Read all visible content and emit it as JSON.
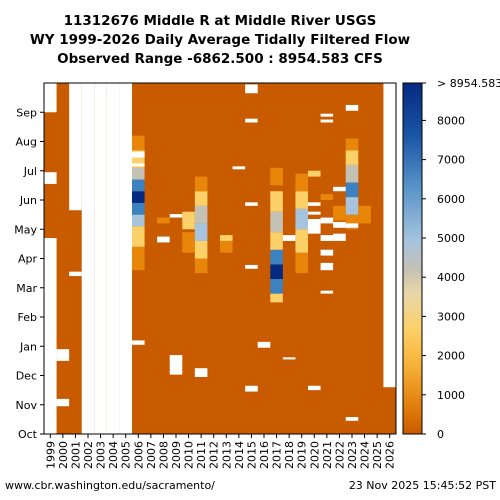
{
  "chart_data": {
    "type": "heatmap",
    "title": [
      "11312676 Middle R at Middle River USGS",
      "WY 1999-2026 Daily Average Tidally Filtered Flow",
      "Observed Range -6862.500 : 8954.583 CFS"
    ],
    "x_categories": [
      "1999",
      "2000",
      "2001",
      "2002",
      "2003",
      "2004",
      "2005",
      "2006",
      "2007",
      "2008",
      "2009",
      "2010",
      "2011",
      "2012",
      "2013",
      "2014",
      "2015",
      "2016",
      "2017",
      "2018",
      "2019",
      "2020",
      "2021",
      "2022",
      "2023",
      "2024",
      "2025",
      "2026"
    ],
    "y_categories": [
      "Oct",
      "Nov",
      "Dec",
      "Jan",
      "Feb",
      "Mar",
      "Apr",
      "May",
      "Jun",
      "Jul",
      "Aug",
      "Sep"
    ],
    "colorbar": {
      "ticks": [
        0,
        1000,
        2000,
        3000,
        4000,
        5000,
        6000,
        7000,
        8000
      ],
      "top_label": "> 8954.583",
      "range": [
        0,
        8954.583
      ],
      "colors": {
        "low": "#c85a00",
        "orange": "#e8860a",
        "yellow": "#fcd169",
        "grey": "#c4c1b5",
        "lightblue": "#a6c4de",
        "blue": "#3d82c0",
        "darkblue": "#052a82",
        "missing": "#ffffff"
      }
    },
    "base_value_note": "",
    "ranges": [
      {
        "year": "2006",
        "from": 5.6,
        "to": 6.4,
        "level": "orange"
      },
      {
        "year": "2006",
        "from": 6.4,
        "to": 7.1,
        "level": "yellow"
      },
      {
        "year": "2006",
        "from": 7.1,
        "to": 7.5,
        "level": "lightblue"
      },
      {
        "year": "2006",
        "from": 7.5,
        "to": 7.9,
        "level": "blue"
      },
      {
        "year": "2006",
        "from": 7.9,
        "to": 8.3,
        "level": "darkblue"
      },
      {
        "year": "2006",
        "from": 8.3,
        "to": 8.7,
        "level": "blue"
      },
      {
        "year": "2006",
        "from": 8.7,
        "to": 9.1,
        "level": "grey"
      },
      {
        "year": "2006",
        "from": 9.1,
        "to": 9.7,
        "level": "yellow"
      },
      {
        "year": "2006",
        "from": 9.7,
        "to": 10.2,
        "level": "orange"
      },
      {
        "year": "2010",
        "from": 6.2,
        "to": 6.9,
        "level": "orange"
      },
      {
        "year": "2010",
        "from": 7.0,
        "to": 7.6,
        "level": "yellow"
      },
      {
        "year": "2011",
        "from": 5.5,
        "to": 6.0,
        "level": "orange"
      },
      {
        "year": "2011",
        "from": 6.0,
        "to": 6.6,
        "level": "yellow"
      },
      {
        "year": "2011",
        "from": 6.6,
        "to": 7.2,
        "level": "lightblue"
      },
      {
        "year": "2011",
        "from": 7.2,
        "to": 7.8,
        "level": "grey"
      },
      {
        "year": "2011",
        "from": 7.8,
        "to": 8.3,
        "level": "yellow"
      },
      {
        "year": "2011",
        "from": 8.3,
        "to": 8.8,
        "level": "orange"
      },
      {
        "year": "2017",
        "from": 4.5,
        "to": 4.8,
        "level": "yellow"
      },
      {
        "year": "2017",
        "from": 4.8,
        "to": 5.3,
        "level": "blue"
      },
      {
        "year": "2017",
        "from": 5.3,
        "to": 5.8,
        "level": "darkblue"
      },
      {
        "year": "2017",
        "from": 5.8,
        "to": 6.3,
        "level": "blue"
      },
      {
        "year": "2017",
        "from": 6.3,
        "to": 6.9,
        "level": "yellow"
      },
      {
        "year": "2017",
        "from": 6.9,
        "to": 7.6,
        "level": "grey"
      },
      {
        "year": "2017",
        "from": 7.6,
        "to": 8.3,
        "level": "yellow"
      },
      {
        "year": "2017",
        "from": 8.5,
        "to": 9.1,
        "level": "orange"
      },
      {
        "year": "2019",
        "from": 5.5,
        "to": 6.2,
        "level": "orange"
      },
      {
        "year": "2019",
        "from": 6.2,
        "to": 7.0,
        "level": "yellow"
      },
      {
        "year": "2019",
        "from": 7.0,
        "to": 7.7,
        "level": "lightblue"
      },
      {
        "year": "2019",
        "from": 7.7,
        "to": 8.3,
        "level": "yellow"
      },
      {
        "year": "2019",
        "from": 8.3,
        "to": 8.9,
        "level": "orange"
      },
      {
        "year": "2023",
        "from": 7.0,
        "to": 7.5,
        "level": "orange"
      },
      {
        "year": "2023",
        "from": 7.5,
        "to": 8.1,
        "level": "lightblue"
      },
      {
        "year": "2023",
        "from": 8.1,
        "to": 8.6,
        "level": "blue"
      },
      {
        "year": "2023",
        "from": 8.6,
        "to": 9.2,
        "level": "grey"
      },
      {
        "year": "2023",
        "from": 9.2,
        "to": 9.7,
        "level": "yellow"
      },
      {
        "year": "2023",
        "from": 9.7,
        "to": 10.1,
        "level": "orange"
      },
      {
        "year": "2024",
        "from": 7.2,
        "to": 7.8,
        "level": "orange"
      },
      {
        "year": "2022",
        "from": 7.3,
        "to": 7.8,
        "level": "orange"
      },
      {
        "year": "2013",
        "from": 6.2,
        "to": 6.6,
        "level": "orange"
      },
      {
        "year": "2013",
        "from": 6.6,
        "to": 6.8,
        "level": "yellow"
      },
      {
        "year": "2008",
        "from": 7.2,
        "to": 7.4,
        "level": "orange"
      },
      {
        "year": "2020",
        "from": 8.8,
        "to": 9.0,
        "level": "yellow"
      },
      {
        "year": "2021",
        "from": 8.0,
        "to": 8.2,
        "level": "orange"
      }
    ],
    "missing": [
      {
        "year": "1999",
        "from": 11.0,
        "to": 12.0
      },
      {
        "year": "1999",
        "from": 0.0,
        "to": 6.7
      },
      {
        "year": "1999",
        "from": 8.55,
        "to": 8.95
      },
      {
        "year": "2001",
        "from": 7.65,
        "to": 12.0
      },
      {
        "year": "2001",
        "from": 5.4,
        "to": 5.55
      },
      {
        "year": "2002",
        "from": 0.0,
        "to": 12.0
      },
      {
        "year": "2003",
        "from": 0.0,
        "to": 12.0
      },
      {
        "year": "2004",
        "from": 0.0,
        "to": 12.0
      },
      {
        "year": "2005",
        "from": 0.0,
        "to": 12.0
      },
      {
        "year": "2000",
        "from": 0.95,
        "to": 1.2
      },
      {
        "year": "2000",
        "from": 2.5,
        "to": 2.9
      },
      {
        "year": "2006",
        "from": 9.15,
        "to": 9.25
      },
      {
        "year": "2006",
        "from": 9.45,
        "to": 9.65
      },
      {
        "year": "2006",
        "from": 3.05,
        "to": 3.2
      },
      {
        "year": "2008",
        "from": 6.55,
        "to": 6.75
      },
      {
        "year": "2009",
        "from": 7.4,
        "to": 7.52
      },
      {
        "year": "2009",
        "from": 2.03,
        "to": 2.7
      },
      {
        "year": "2011",
        "from": 1.95,
        "to": 2.25
      },
      {
        "year": "2014",
        "from": 9.05,
        "to": 9.15
      },
      {
        "year": "2015",
        "from": 11.65,
        "to": 11.95
      },
      {
        "year": "2015",
        "from": 10.65,
        "to": 10.78
      },
      {
        "year": "2015",
        "from": 7.8,
        "to": 7.92
      },
      {
        "year": "2015",
        "from": 5.65,
        "to": 5.78
      },
      {
        "year": "2015",
        "from": 1.45,
        "to": 1.65
      },
      {
        "year": "2016",
        "from": 2.95,
        "to": 3.15
      },
      {
        "year": "2018",
        "from": 6.6,
        "to": 6.8
      },
      {
        "year": "2018",
        "from": 2.55,
        "to": 2.62
      },
      {
        "year": "2020",
        "from": 7.8,
        "to": 7.92
      },
      {
        "year": "2020",
        "from": 7.5,
        "to": 7.6
      },
      {
        "year": "2020",
        "from": 6.85,
        "to": 7.35
      },
      {
        "year": "2020",
        "from": 1.5,
        "to": 1.65
      },
      {
        "year": "2021",
        "from": 10.85,
        "to": 10.95
      },
      {
        "year": "2021",
        "from": 10.65,
        "to": 10.75
      },
      {
        "year": "2021",
        "from": 7.2,
        "to": 7.4
      },
      {
        "year": "2021",
        "from": 6.6,
        "to": 6.8
      },
      {
        "year": "2021",
        "from": 6.1,
        "to": 6.3
      },
      {
        "year": "2021",
        "from": 5.6,
        "to": 5.85
      },
      {
        "year": "2021",
        "from": 4.8,
        "to": 4.9
      },
      {
        "year": "2022",
        "from": 8.3,
        "to": 8.45
      },
      {
        "year": "2022",
        "from": 7.05,
        "to": 7.25
      },
      {
        "year": "2022",
        "from": 6.6,
        "to": 6.85
      },
      {
        "year": "2023",
        "from": 11.05,
        "to": 11.25
      },
      {
        "year": "2023",
        "from": 0.45,
        "to": 0.58
      },
      {
        "year": "2023",
        "from": 7.05,
        "to": 7.2
      },
      {
        "year": "2025",
        "from": 0.0,
        "to": 0.0
      },
      {
        "year": "2026",
        "from": 1.6,
        "to": 12.0
      }
    ]
  },
  "footer": {
    "left": "www.cbr.washington.edu/sacramento/",
    "right": "23 Nov 2025 15:45:52 PST"
  }
}
